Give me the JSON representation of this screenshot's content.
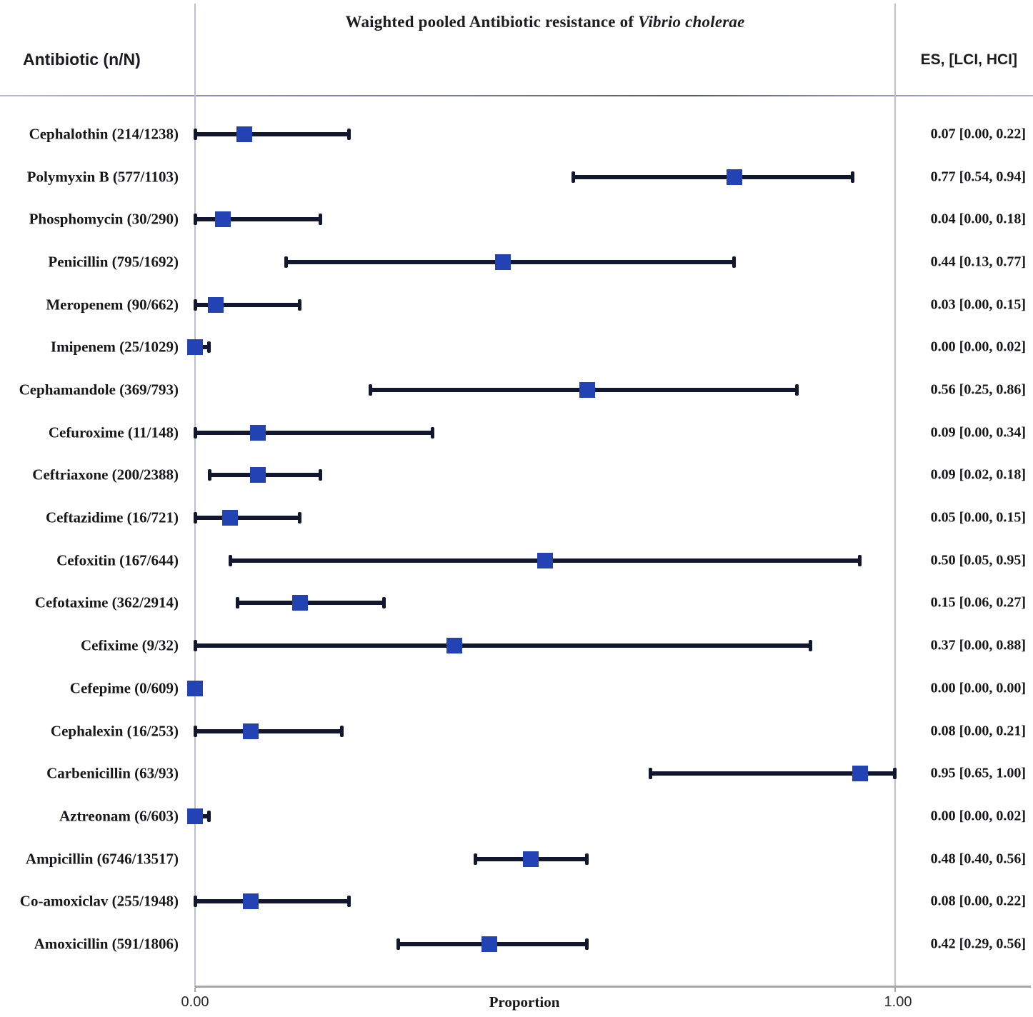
{
  "title": {
    "main": "Waighted pooled Antibiotic resistance of ",
    "italic": "Vibrio cholerae"
  },
  "headers": {
    "antibiotic": "Antibiotic (n/N)",
    "es": "ES, [LCI, HCI]"
  },
  "x_axis": {
    "title": "Proportion",
    "tick_labels": [
      "0.00",
      "1.00"
    ]
  },
  "colors": {
    "marker": "#2342b4",
    "ci_line": "#10172e",
    "grid_line": "#bdc1cc",
    "axis_line": "#a4a6ad",
    "text": "#17171c"
  },
  "chart_data": {
    "type": "forest",
    "title": "Waighted pooled Antibiotic resistance of Vibrio cholerae",
    "xlabel": "Proportion",
    "xlim": [
      0,
      1
    ],
    "x_ticks": [
      0.0,
      1.0
    ],
    "grid": false,
    "rows": [
      {
        "label": "Cephalothin (214/1238)",
        "es": 0.07,
        "lci": 0.0,
        "hci": 0.22,
        "es_text": "0.07 [0.00, 0.22]"
      },
      {
        "label": "Polymyxin B (577/1103)",
        "es": 0.77,
        "lci": 0.54,
        "hci": 0.94,
        "es_text": "0.77 [0.54, 0.94]"
      },
      {
        "label": "Phosphomycin (30/290)",
        "es": 0.04,
        "lci": 0.0,
        "hci": 0.18,
        "es_text": "0.04 [0.00, 0.18]"
      },
      {
        "label": "Penicillin (795/1692)",
        "es": 0.44,
        "lci": 0.13,
        "hci": 0.77,
        "es_text": "0.44 [0.13, 0.77]"
      },
      {
        "label": "Meropenem (90/662)",
        "es": 0.03,
        "lci": 0.0,
        "hci": 0.15,
        "es_text": "0.03 [0.00, 0.15]"
      },
      {
        "label": "Imipenem (25/1029)",
        "es": 0.0,
        "lci": 0.0,
        "hci": 0.02,
        "es_text": "0.00 [0.00, 0.02]"
      },
      {
        "label": "Cephamandole (369/793)",
        "es": 0.56,
        "lci": 0.25,
        "hci": 0.86,
        "es_text": "0.56 [0.25, 0.86]"
      },
      {
        "label": "Cefuroxime (11/148)",
        "es": 0.09,
        "lci": 0.0,
        "hci": 0.34,
        "es_text": "0.09 [0.00, 0.34]"
      },
      {
        "label": "Ceftriaxone (200/2388)",
        "es": 0.09,
        "lci": 0.02,
        "hci": 0.18,
        "es_text": "0.09 [0.02, 0.18]"
      },
      {
        "label": "Ceftazidime (16/721)",
        "es": 0.05,
        "lci": 0.0,
        "hci": 0.15,
        "es_text": "0.05 [0.00, 0.15]"
      },
      {
        "label": "Cefoxitin (167/644)",
        "es": 0.5,
        "lci": 0.05,
        "hci": 0.95,
        "es_text": "0.50 [0.05, 0.95]"
      },
      {
        "label": "Cefotaxime (362/2914)",
        "es": 0.15,
        "lci": 0.06,
        "hci": 0.27,
        "es_text": "0.15 [0.06, 0.27]"
      },
      {
        "label": "Cefixime (9/32)",
        "es": 0.37,
        "lci": 0.0,
        "hci": 0.88,
        "es_text": "0.37 [0.00, 0.88]"
      },
      {
        "label": "Cefepime (0/609)",
        "es": 0.0,
        "lci": 0.0,
        "hci": 0.0,
        "es_text": "0.00 [0.00, 0.00]"
      },
      {
        "label": "Cephalexin (16/253)",
        "es": 0.08,
        "lci": 0.0,
        "hci": 0.21,
        "es_text": "0.08 [0.00, 0.21]"
      },
      {
        "label": "Carbenicillin (63/93)",
        "es": 0.95,
        "lci": 0.65,
        "hci": 1.0,
        "es_text": "0.95 [0.65, 1.00]"
      },
      {
        "label": "Aztreonam (6/603)",
        "es": 0.0,
        "lci": 0.0,
        "hci": 0.02,
        "es_text": "0.00 [0.00, 0.02]"
      },
      {
        "label": "Ampicillin (6746/13517)",
        "es": 0.48,
        "lci": 0.4,
        "hci": 0.56,
        "es_text": "0.48 [0.40, 0.56]"
      },
      {
        "label": "Co-amoxiclav (255/1948)",
        "es": 0.08,
        "lci": 0.0,
        "hci": 0.22,
        "es_text": "0.08 [0.00, 0.22]"
      },
      {
        "label": "Amoxicillin (591/1806)",
        "es": 0.42,
        "lci": 0.29,
        "hci": 0.56,
        "es_text": "0.42 [0.29, 0.56]"
      }
    ]
  }
}
